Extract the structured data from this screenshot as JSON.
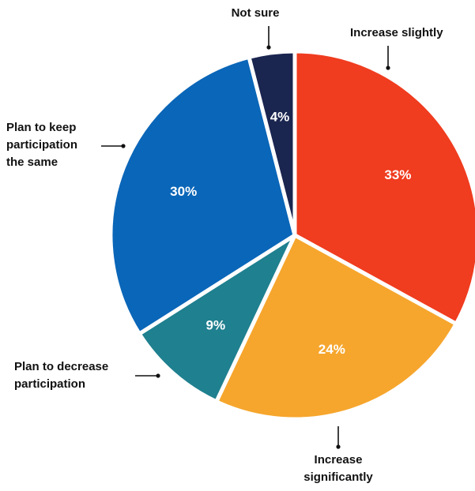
{
  "chart_data": {
    "type": "pie",
    "categories": [
      "Increase slightly",
      "Increase significantly",
      "Plan to decrease participation",
      "Plan to keep participation the same",
      "Not sure"
    ],
    "values": [
      33,
      24,
      9,
      30,
      4
    ],
    "value_labels": [
      "33%",
      "24%",
      "9%",
      "30%",
      "4%"
    ],
    "label_lines": [
      [
        "Increase slightly"
      ],
      [
        "Increase",
        "significantly"
      ],
      [
        "Plan to decrease",
        "participation"
      ],
      [
        "Plan to keep",
        "participation",
        "the same"
      ],
      [
        "Not sure"
      ]
    ],
    "colors": [
      "#f03c1f",
      "#f6a62d",
      "#1f808f",
      "#0a66b8",
      "#1a2550"
    ],
    "start_angle_deg": 0,
    "direction": "clockwise",
    "legend": "none",
    "grid": false,
    "title": "",
    "xlabel": "",
    "ylabel": ""
  }
}
